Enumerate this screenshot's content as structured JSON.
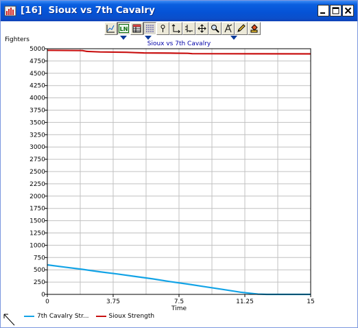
{
  "window": {
    "title": "[16]  Sioux vs 7th Cavalry",
    "buttons": [
      "minimize",
      "maximize",
      "close"
    ]
  },
  "toolbar": {
    "buttons": [
      {
        "icon": "graph-icon",
        "pressed": false
      },
      {
        "icon": "line-graph-icon",
        "pressed": true,
        "label": "LN"
      },
      {
        "icon": "table-icon",
        "pressed": false
      },
      {
        "icon": "grid-icon",
        "pressed": true
      },
      {
        "icon": "pin-icon",
        "pressed": false
      },
      {
        "icon": "axis-icon",
        "pressed": false
      },
      {
        "icon": "axis-scale-icon",
        "pressed": false
      },
      {
        "icon": "move-icon",
        "pressed": false
      },
      {
        "icon": "zoom-icon",
        "pressed": false
      },
      {
        "icon": "text-annotate-icon",
        "pressed": false
      },
      {
        "icon": "pencil-icon",
        "pressed": false
      },
      {
        "icon": "paint-bucket-icon",
        "pressed": false
      }
    ]
  },
  "chart_data": {
    "type": "line",
    "title": "Sioux vs 7th Cavalry",
    "ylabel": "Fighters",
    "xlabel": "Time",
    "xlim": [
      0,
      15
    ],
    "ylim": [
      0,
      5000
    ],
    "x_ticks": [
      "0",
      "3.75",
      "7.5",
      "11.25",
      "15"
    ],
    "y_ticks": [
      "0",
      "250",
      "500",
      "750",
      "1000",
      "1250",
      "1500",
      "1750",
      "2000",
      "2250",
      "2500",
      "2750",
      "3000",
      "3250",
      "3500",
      "3750",
      "4000",
      "4250",
      "4500",
      "4750",
      "5000"
    ],
    "x_grid": [
      0,
      1.875,
      3.75,
      5.625,
      7.5,
      9.375,
      11.25,
      13.125,
      15
    ],
    "grid": true,
    "legend_position": "bottom",
    "series": [
      {
        "name": "7th Cavalry Str...",
        "color": "#12a3e6",
        "points": [
          [
            0,
            600
          ],
          [
            1,
            555
          ],
          [
            2,
            510
          ],
          [
            3,
            460
          ],
          [
            4,
            415
          ],
          [
            5,
            365
          ],
          [
            6,
            315
          ],
          [
            7,
            260
          ],
          [
            8,
            210
          ],
          [
            9,
            155
          ],
          [
            10,
            100
          ],
          [
            11,
            45
          ],
          [
            12,
            5
          ],
          [
            12.5,
            0
          ],
          [
            15,
            0
          ]
        ]
      },
      {
        "name": "Sioux Strength",
        "color": "#c81010",
        "points": [
          [
            0,
            4968
          ],
          [
            2,
            4962
          ],
          [
            2.25,
            4945
          ],
          [
            3,
            4935
          ],
          [
            4.5,
            4928
          ],
          [
            5,
            4920
          ],
          [
            5.5,
            4915
          ],
          [
            7,
            4910
          ],
          [
            8,
            4906
          ],
          [
            8.25,
            4900
          ],
          [
            10,
            4898
          ],
          [
            12,
            4897
          ],
          [
            15,
            4895
          ]
        ]
      }
    ]
  }
}
